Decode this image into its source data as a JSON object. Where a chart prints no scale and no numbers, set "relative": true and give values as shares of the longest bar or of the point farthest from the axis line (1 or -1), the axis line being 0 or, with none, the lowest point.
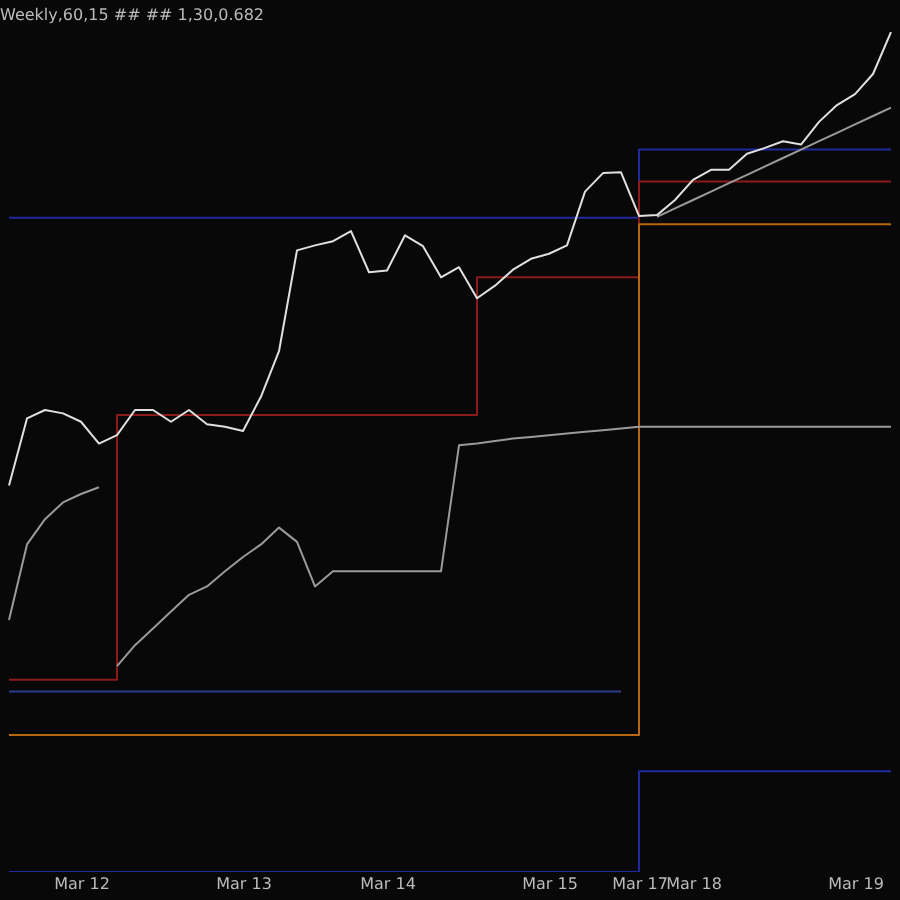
{
  "chart_data": {
    "type": "line",
    "title": "Weekly,60,15 ## ## 1,30,0.682",
    "relative": true,
    "legend": false,
    "grid": false,
    "tick_labels": "x",
    "categories": [
      null,
      null,
      null,
      null,
      "Mar 12",
      null,
      null,
      null,
      null,
      null,
      null,
      null,
      null,
      "Mar 13",
      null,
      null,
      null,
      null,
      null,
      null,
      null,
      "Mar 14",
      null,
      null,
      null,
      null,
      null,
      null,
      null,
      null,
      "Mar 15",
      null,
      null,
      null,
      null,
      "Mar 17",
      null,
      null,
      "Mar 18",
      null,
      null,
      null,
      null,
      null,
      null,
      null,
      null,
      "Mar 19",
      null,
      null
    ],
    "series": [
      {
        "type": "step",
        "color": "#1f2a9e",
        "values": [
          0.779,
          0.779,
          0.779,
          0.779,
          0.779,
          0.779,
          0.779,
          0.779,
          0.779,
          0.779,
          0.779,
          0.779,
          0.779,
          0.779,
          0.779,
          0.779,
          0.779,
          0.779,
          0.779,
          0.779,
          0.779,
          0.779,
          0.779,
          0.779,
          0.779,
          0.779,
          0.779,
          0.779,
          0.779,
          0.779,
          0.779,
          0.779,
          0.779,
          0.779,
          0.779,
          0.86,
          0.86,
          0.86,
          0.86,
          0.86,
          0.86,
          0.86,
          0.86,
          0.86,
          0.86,
          0.86,
          0.86,
          0.86,
          0.86,
          0.86
        ]
      },
      {
        "type": "step",
        "color": "#1f2a9e",
        "values": [
          0,
          0,
          0,
          0,
          0,
          0,
          0,
          0,
          0,
          0,
          0,
          0,
          0,
          0,
          0,
          0,
          0,
          0,
          0,
          0,
          0,
          0,
          0,
          0,
          0,
          0,
          0,
          0,
          0,
          0,
          0,
          0,
          0,
          0,
          0,
          0.12,
          0.12,
          0.12,
          0.12,
          0.12,
          0.12,
          0.12,
          0.12,
          0.12,
          0.12,
          0.12,
          0.12,
          0.12,
          0.12,
          0.12
        ]
      },
      {
        "type": "step",
        "color": "#2a3a8a",
        "values": [
          0.215,
          0.215,
          0.215,
          0.215,
          0.215,
          0.215,
          0.215,
          0.215,
          0.215,
          0.215,
          0.215,
          0.215,
          0.215,
          0.215,
          0.215,
          0.215,
          0.215,
          0.215,
          0.215,
          0.215,
          0.215,
          0.215,
          0.215,
          0.215,
          0.215,
          0.215,
          0.215,
          0.215,
          0.215,
          0.215,
          0.215,
          0.215,
          0.215,
          0.215,
          0.215,
          null,
          null,
          null,
          null,
          null,
          null,
          null,
          null,
          null,
          null,
          null,
          null,
          null,
          null,
          null
        ]
      },
      {
        "type": "step",
        "color": "#8b1a1a",
        "values": [
          0.229,
          0.229,
          0.229,
          0.229,
          0.229,
          0.229,
          0.544,
          0.544,
          0.544,
          0.544,
          0.544,
          0.544,
          0.544,
          0.544,
          0.544,
          0.544,
          0.544,
          0.544,
          0.544,
          0.544,
          0.544,
          0.544,
          0.544,
          0.544,
          0.544,
          0.544,
          0.708,
          0.708,
          0.708,
          0.708,
          0.708,
          0.708,
          0.708,
          0.708,
          0.708,
          0.822,
          0.822,
          0.822,
          0.822,
          0.822,
          0.822,
          0.822,
          0.822,
          0.822,
          0.822,
          0.822,
          0.822,
          0.822,
          0.822,
          0.822
        ]
      },
      {
        "type": "step",
        "color": "#b8660f",
        "values": [
          0.163,
          0.163,
          0.163,
          0.163,
          0.163,
          0.163,
          0.163,
          0.163,
          0.163,
          0.163,
          0.163,
          0.163,
          0.163,
          0.163,
          0.163,
          0.163,
          0.163,
          0.163,
          0.163,
          0.163,
          0.163,
          0.163,
          0.163,
          0.163,
          0.163,
          0.163,
          0.163,
          0.163,
          0.163,
          0.163,
          0.163,
          0.163,
          0.163,
          0.163,
          0.163,
          0.771,
          0.771,
          0.771,
          0.771,
          0.771,
          0.771,
          0.771,
          0.771,
          0.771,
          0.771,
          0.771,
          0.771,
          0.771,
          0.771,
          0.771
        ]
      },
      {
        "color": "#9a9a9a",
        "values": [
          null,
          null,
          null,
          null,
          null,
          null,
          0.245,
          0.27,
          0.29,
          0.31,
          0.33,
          0.34,
          0.358,
          0.375,
          0.39,
          0.41,
          0.393,
          0.34,
          0.358,
          0.358,
          0.358,
          0.358,
          0.358,
          0.358,
          0.358,
          0.508,
          0.51,
          0.513,
          0.516,
          0.518,
          0.52,
          0.522,
          0.524,
          0.526,
          0.528,
          0.53,
          0.53,
          0.53,
          0.53,
          0.53,
          0.53,
          0.53,
          0.53,
          0.53,
          0.53,
          0.53,
          0.53,
          0.53,
          0.53,
          0.53
        ]
      },
      {
        "color": "#9a9a9a",
        "values": [
          0.3,
          0.39,
          0.42,
          0.44,
          0.45,
          0.458,
          null,
          null,
          null,
          null,
          null,
          null,
          null,
          null,
          null,
          null,
          null,
          null,
          null,
          null,
          null,
          null,
          null,
          null,
          null,
          null,
          null,
          null,
          null,
          null,
          null,
          null,
          null,
          null,
          null,
          null,
          null,
          null,
          null,
          null,
          null,
          null,
          null,
          null,
          null,
          null,
          null,
          null,
          null,
          null
        ]
      },
      {
        "color": "#9a9a9a",
        "values": [
          null,
          null,
          null,
          null,
          null,
          null,
          null,
          null,
          null,
          null,
          null,
          null,
          null,
          null,
          null,
          null,
          null,
          null,
          null,
          null,
          null,
          null,
          null,
          null,
          null,
          null,
          null,
          null,
          null,
          null,
          null,
          null,
          null,
          null,
          null,
          null,
          0.78,
          0.79,
          0.8,
          0.81,
          0.82,
          0.83,
          0.84,
          0.85,
          0.86,
          0.87,
          0.88,
          0.89,
          0.9,
          0.91
        ]
      },
      {
        "color": "#e0e0e0",
        "values": [
          0.46,
          0.54,
          0.55,
          0.546,
          0.536,
          0.51,
          0.52,
          0.55,
          0.55,
          0.536,
          0.55,
          0.533,
          0.53,
          0.525,
          0.566,
          0.62,
          0.74,
          0.746,
          0.751,
          0.763,
          0.714,
          0.716,
          0.758,
          0.745,
          0.708,
          0.72,
          0.683,
          0.698,
          0.717,
          0.73,
          0.736,
          0.746,
          0.81,
          0.832,
          0.833,
          0.781,
          0.782,
          0.8,
          0.824,
          0.836,
          0.836,
          0.855,
          0.862,
          0.87,
          0.866,
          0.893,
          0.913,
          0.926,
          0.95,
          1.0
        ]
      }
    ]
  }
}
